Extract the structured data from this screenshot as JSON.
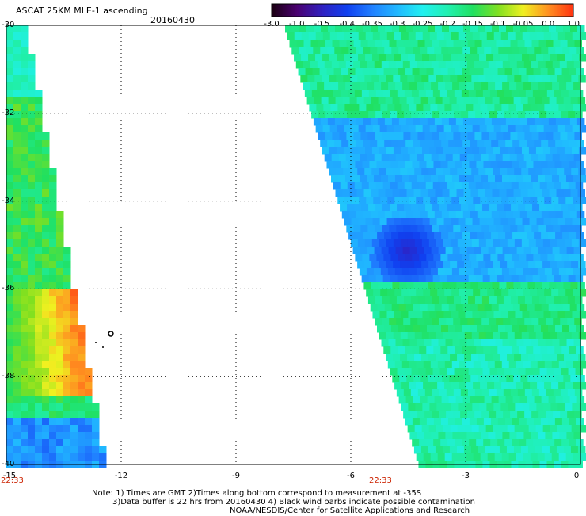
{
  "header": {
    "title": "ASCAT 25KM MLE-1 ascending",
    "date": "20160430"
  },
  "colorbar": {
    "labels": [
      "-3.0",
      "-1.0",
      "-0.5",
      "-0.4",
      "-0.35",
      "-0.3",
      "-0.25",
      "-0.2",
      "-0.15",
      "-0.1",
      "-0.05",
      "0.0",
      "1.0"
    ],
    "colors": [
      "#1a0010",
      "#4a0070",
      "#3020c0",
      "#1040f0",
      "#2080ff",
      "#20b8ff",
      "#20f0f0",
      "#20f0b0",
      "#20e060",
      "#80e020",
      "#f0f020",
      "#ff9020",
      "#ff3010"
    ]
  },
  "axes": {
    "x_ticks": [
      "-15",
      "-12",
      "-9",
      "-6",
      "-3",
      "0"
    ],
    "y_ticks": [
      "-30",
      "-32",
      "-34",
      "-36",
      "-38",
      "-40"
    ],
    "time_labels": [
      "22:33",
      "22:33"
    ]
  },
  "footer": {
    "note_line1": "Note: 1) Times are GMT 2)Times along bottom correspond to measurement at -35S",
    "note_line2": "3)Data buffer is 22 hrs from 20160430 4) Black wind barbs indicate possible contamination",
    "credit": "NOAA/NESDIS/Center for Satellite Applications and Research"
  }
}
